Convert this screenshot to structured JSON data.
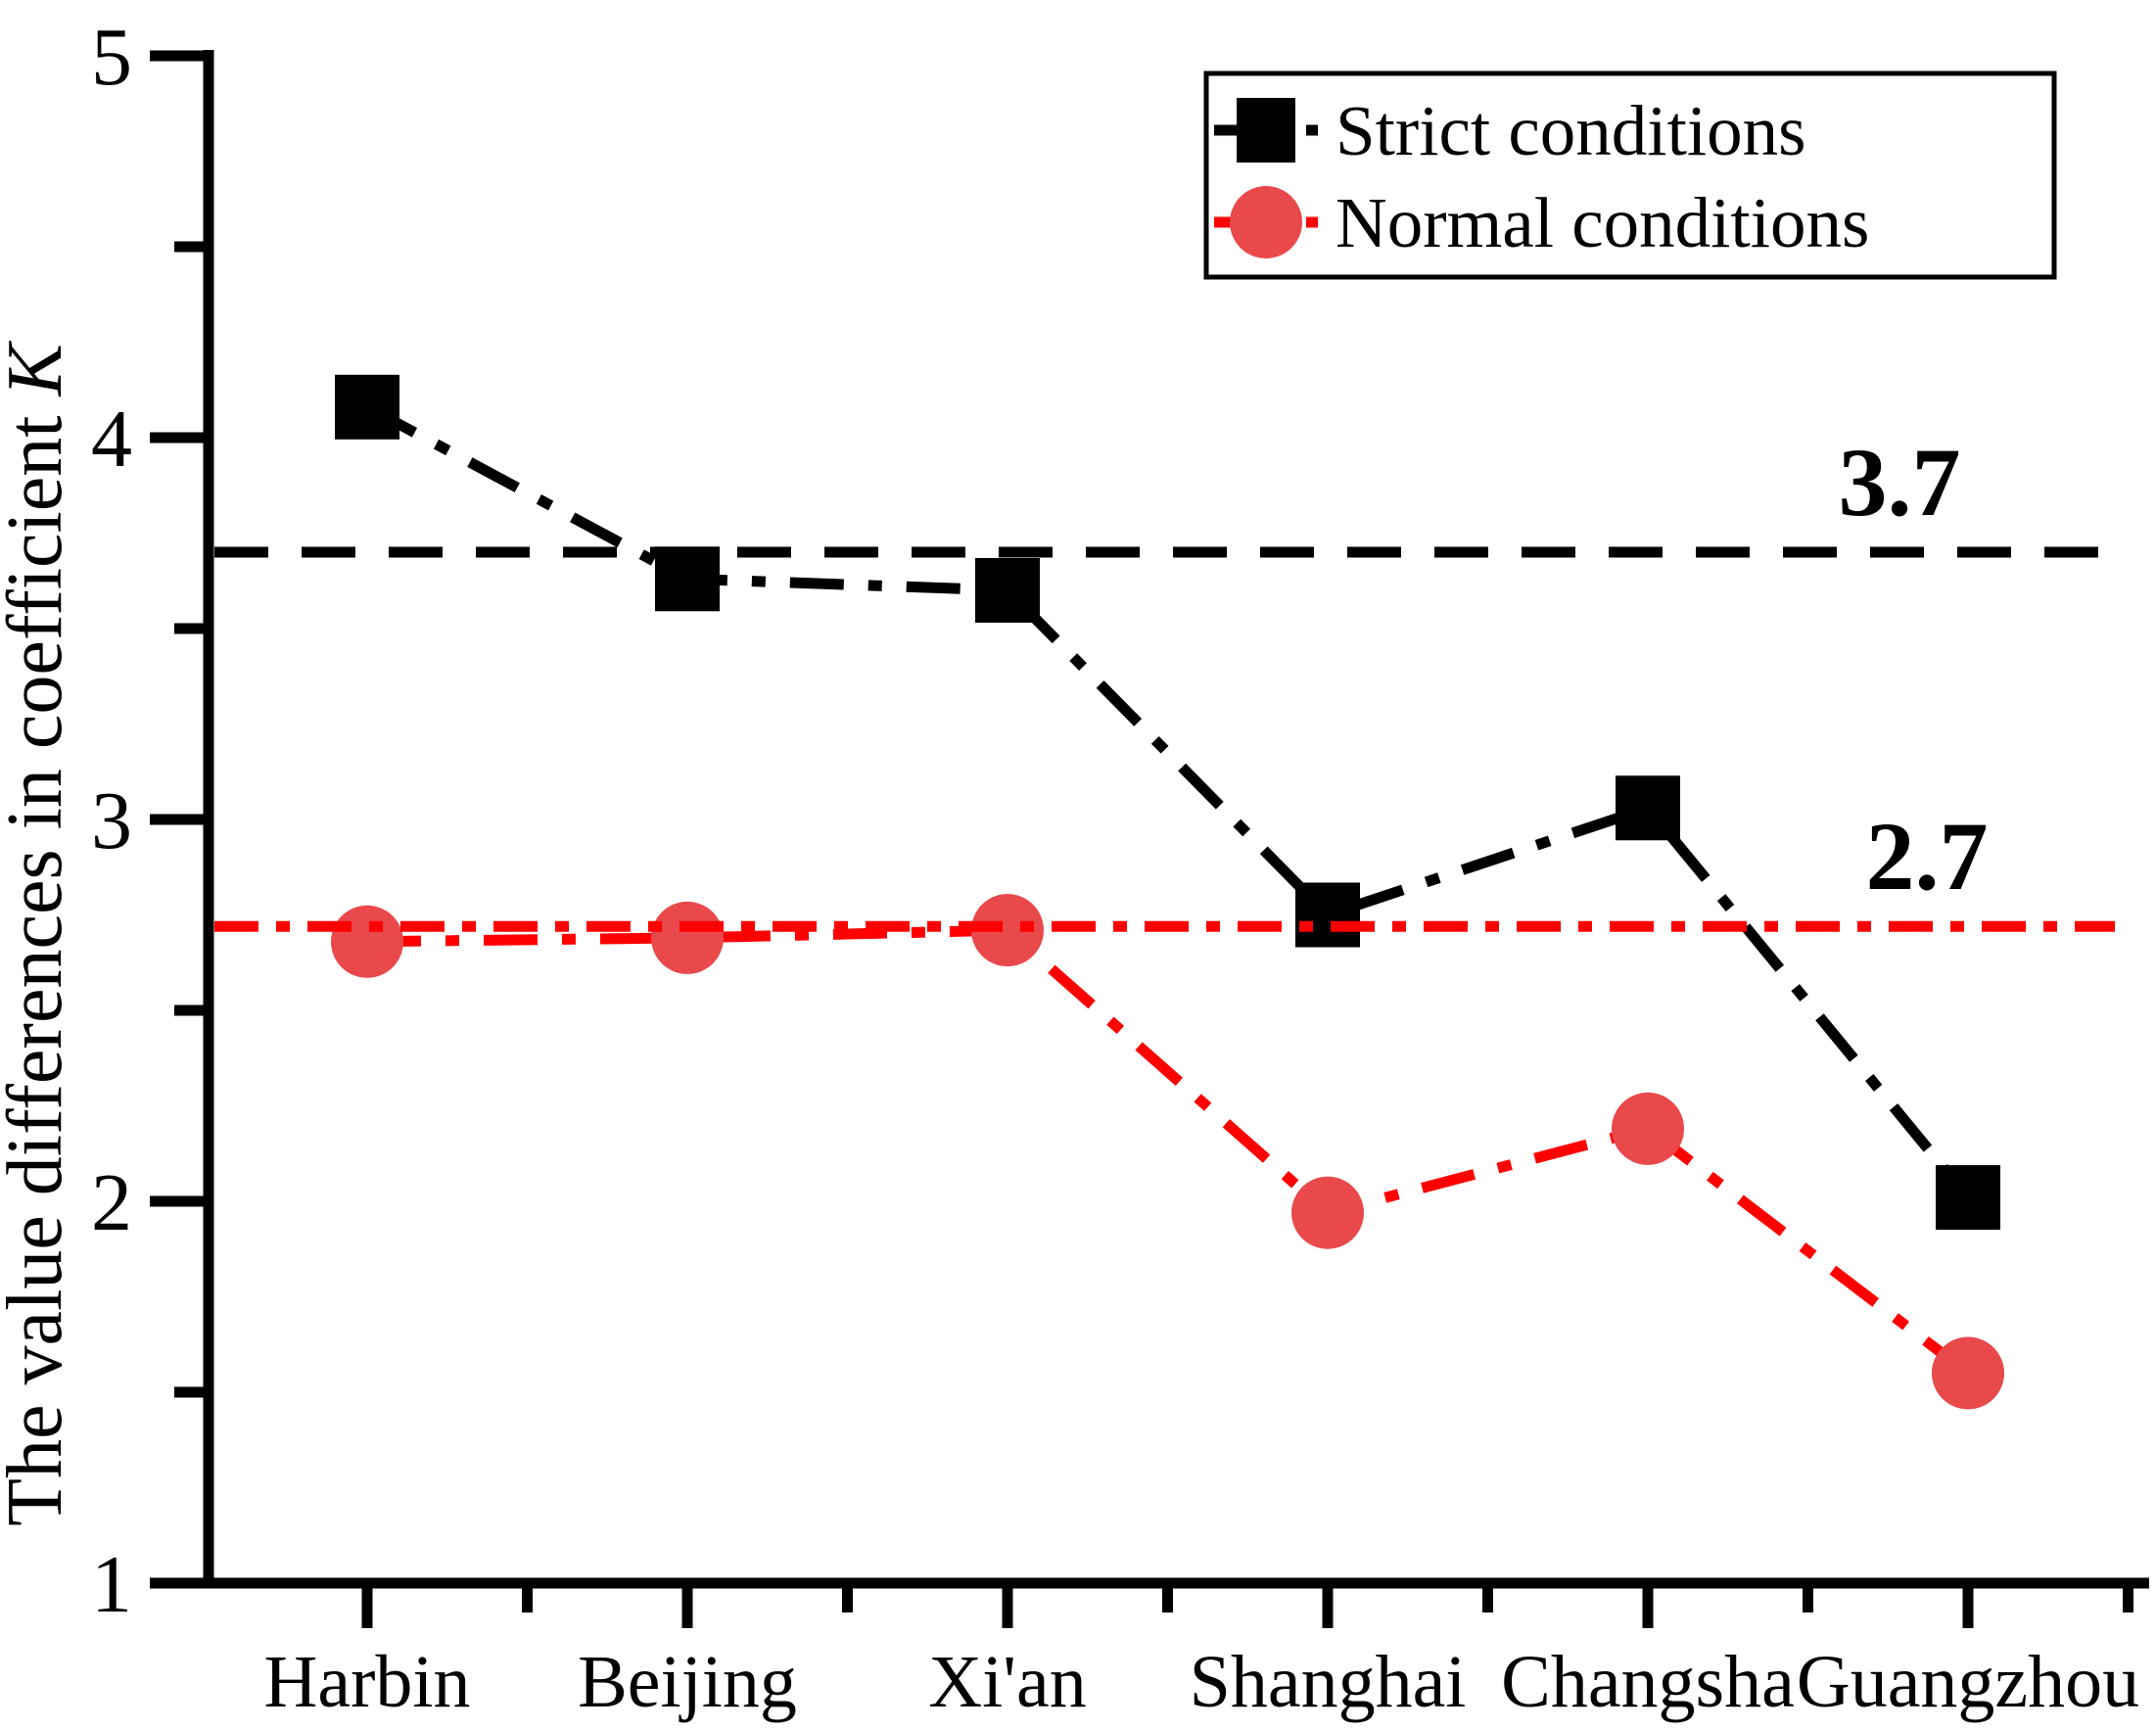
{
  "chart_data": {
    "type": "line",
    "categories": [
      "Harbin",
      "Beijing",
      "Xi'an",
      "Shanghai",
      "Changsha",
      "Guangzhou"
    ],
    "series": [
      {
        "name": "Strict conditions",
        "marker": "square",
        "marker_color": "#000000",
        "line_color": "#000000",
        "line_style": "dash-dot",
        "values": [
          4.08,
          3.63,
          3.6,
          2.75,
          3.03,
          2.01
        ]
      },
      {
        "name": "Normal conditions",
        "marker": "circle",
        "marker_color": "#E9494B",
        "line_color": "#FF0000",
        "line_style": "dash-dot",
        "values": [
          2.68,
          2.69,
          2.71,
          1.97,
          2.19,
          1.55
        ]
      }
    ],
    "reference_lines": [
      {
        "label": "3.7",
        "value": 3.7,
        "color": "#000000",
        "style": "dashed"
      },
      {
        "label": "2.7",
        "value": 2.72,
        "color": "#FF0000",
        "style": "dash-dot"
      }
    ],
    "ylabel": {
      "text": "The value differences in coefficient ",
      "italic_symbol": "K"
    },
    "xlabel": "",
    "ylim": [
      1,
      5
    ],
    "y_major_ticks": [
      5,
      4,
      3,
      2,
      1
    ],
    "y_minor_ticks": [
      4.5,
      3.5,
      2.5,
      1.5
    ],
    "grid": false,
    "legend_position": "top-right"
  }
}
